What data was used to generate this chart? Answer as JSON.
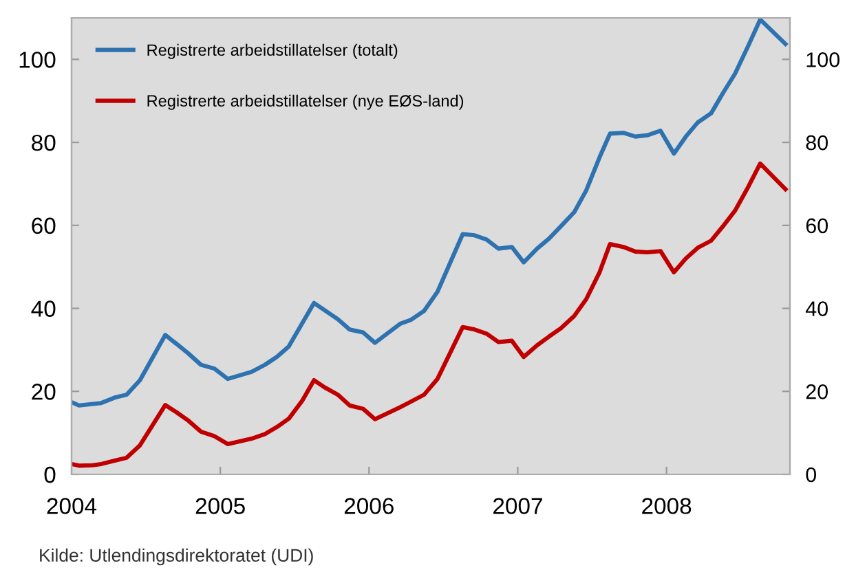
{
  "chart_data": {
    "type": "line",
    "series": [
      {
        "name": "Registrerte arbeidstillatelser (totalt)",
        "color": "#2f72b0",
        "x": [
          2004.0,
          2004.05,
          2004.2,
          2004.29,
          2004.37,
          2004.46,
          2004.63,
          2004.7,
          2004.78,
          2004.87,
          2004.96,
          2005.05,
          2005.21,
          2005.3,
          2005.38,
          2005.46,
          2005.63,
          2005.7,
          2005.79,
          2005.87,
          2005.96,
          2006.04,
          2006.21,
          2006.28,
          2006.37,
          2006.46,
          2006.63,
          2006.71,
          2006.79,
          2006.87,
          2006.96,
          2007.04,
          2007.13,
          2007.21,
          2007.29,
          2007.38,
          2007.46,
          2007.55,
          2007.62,
          2007.71,
          2007.79,
          2007.87,
          2007.96,
          2008.05,
          2008.13,
          2008.21,
          2008.3,
          2008.38,
          2008.46,
          2008.55,
          2008.63,
          2008.8
        ],
        "values": [
          17.4,
          16.6,
          17.2,
          18.5,
          19.2,
          22.7,
          33.6,
          31.6,
          29.3,
          26.4,
          25.5,
          23.0,
          24.7,
          26.4,
          28.3,
          30.8,
          41.3,
          39.6,
          37.4,
          34.9,
          34.2,
          31.7,
          36.3,
          37.2,
          39.4,
          44.0,
          57.9,
          57.6,
          56.6,
          54.4,
          54.8,
          51.1,
          54.4,
          56.8,
          59.8,
          63.2,
          68.4,
          76.4,
          82.1,
          82.3,
          81.4,
          81.7,
          82.8,
          77.3,
          81.4,
          84.8,
          87.0,
          91.9,
          96.5,
          103.3,
          109.6,
          103.7
        ]
      },
      {
        "name": "Registrerte arbeidstillatelser (nye EØS-land)",
        "color": "#c00000",
        "x": [
          2004.0,
          2004.05,
          2004.14,
          2004.2,
          2004.29,
          2004.37,
          2004.46,
          2004.63,
          2004.7,
          2004.78,
          2004.87,
          2004.96,
          2005.05,
          2005.21,
          2005.3,
          2005.38,
          2005.46,
          2005.55,
          2005.63,
          2005.7,
          2005.79,
          2005.87,
          2005.96,
          2006.04,
          2006.21,
          2006.28,
          2006.37,
          2006.46,
          2006.63,
          2006.71,
          2006.79,
          2006.87,
          2006.96,
          2007.04,
          2007.13,
          2007.21,
          2007.29,
          2007.38,
          2007.46,
          2007.55,
          2007.62,
          2007.71,
          2007.79,
          2007.87,
          2007.96,
          2008.05,
          2008.13,
          2008.21,
          2008.3,
          2008.38,
          2008.46,
          2008.55,
          2008.63,
          2008.8
        ],
        "values": [
          2.5,
          2.1,
          2.2,
          2.5,
          3.3,
          4.0,
          7.0,
          16.7,
          15.1,
          13.1,
          10.3,
          9.2,
          7.3,
          8.6,
          9.7,
          11.4,
          13.4,
          17.7,
          22.7,
          21.0,
          19.2,
          16.6,
          15.8,
          13.3,
          16.2,
          17.5,
          19.2,
          23.0,
          35.5,
          34.9,
          33.9,
          31.9,
          32.2,
          28.3,
          31.1,
          33.2,
          35.2,
          38.2,
          42.2,
          48.7,
          55.5,
          54.8,
          53.7,
          53.5,
          53.8,
          48.7,
          52.0,
          54.6,
          56.3,
          59.8,
          63.5,
          69.3,
          74.9,
          68.7
        ]
      }
    ],
    "xlim": [
      2004,
      2008.83
    ],
    "xticks": [
      2004,
      2005,
      2006,
      2007,
      2008
    ],
    "ylim": [
      0,
      110
    ],
    "yticks": [
      0,
      20,
      40,
      60,
      80,
      100
    ],
    "y2lim": [
      0,
      110
    ],
    "y2ticks": [
      0,
      20,
      40,
      60,
      80,
      100
    ],
    "grid": false,
    "legend": "top left",
    "marker": "none",
    "line_style": "solid",
    "annotations": [
      "Kilde: Utlendingsdirektoratet (UDI)"
    ]
  }
}
